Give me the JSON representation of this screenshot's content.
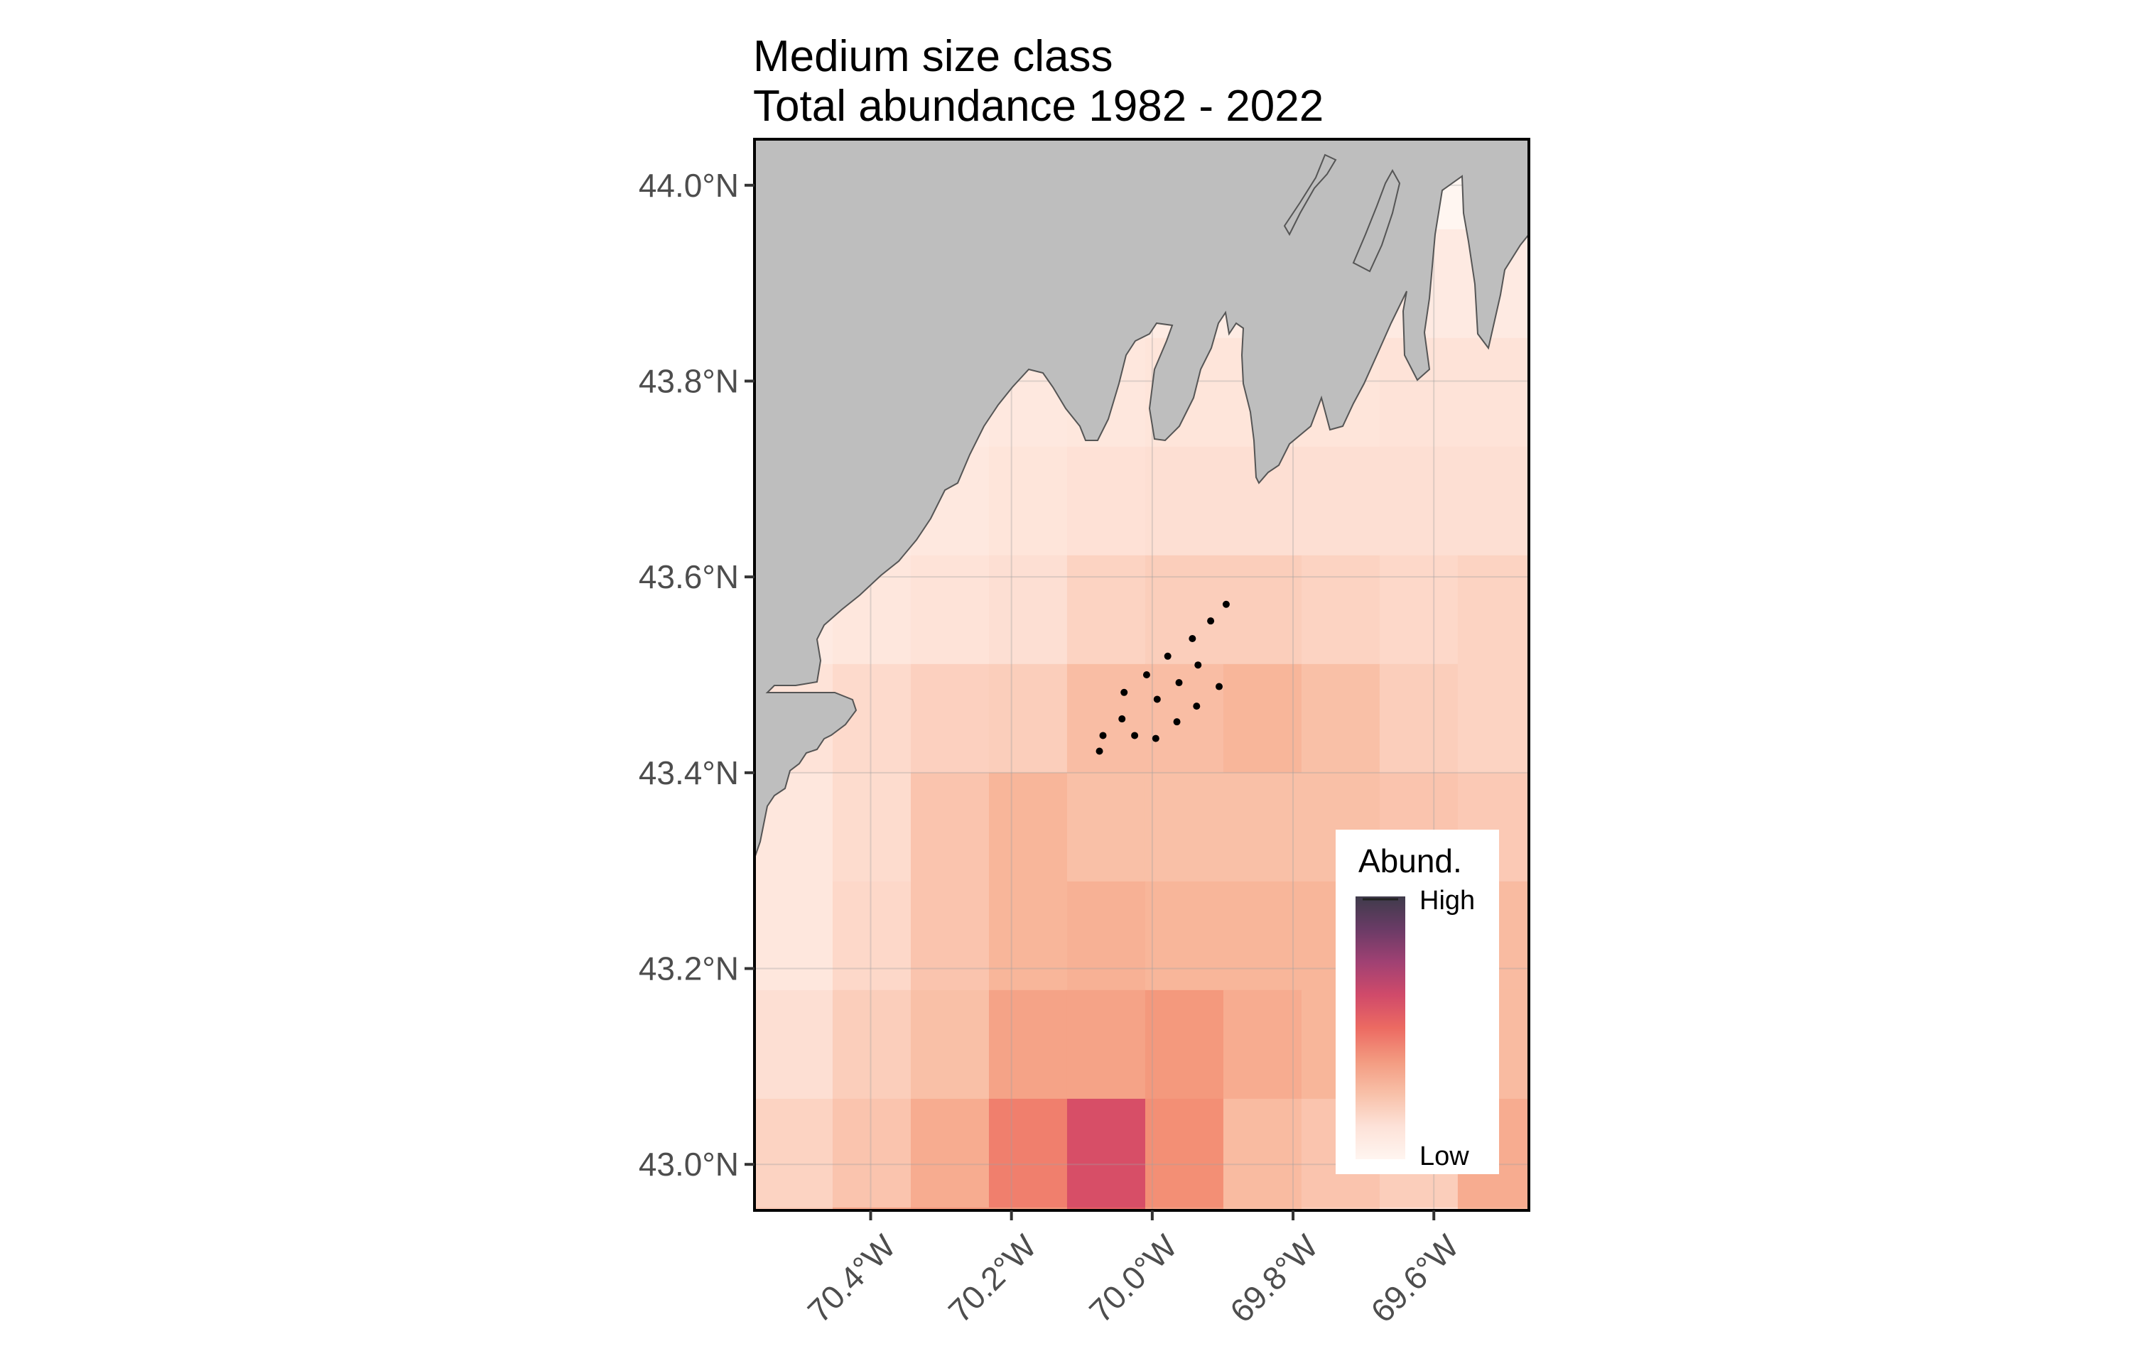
{
  "title_line1": "Medium size class",
  "title_line2": "Total abundance 1982 - 2022",
  "map": {
    "lon_range": [
      -70.565,
      -69.465
    ],
    "lat_range": [
      42.953,
      44.047
    ],
    "land_color": "#bebebe",
    "coast_color": "#555555",
    "sample_point_color": "#000000"
  },
  "axes": {
    "lat_ticks": [
      {
        "value": 44.0,
        "label": "44.0°N"
      },
      {
        "value": 43.8,
        "label": "43.8°N"
      },
      {
        "value": 43.6,
        "label": "43.6°N"
      },
      {
        "value": 43.4,
        "label": "43.4°N"
      },
      {
        "value": 43.2,
        "label": "43.2°N"
      },
      {
        "value": 43.0,
        "label": "43.0°N"
      }
    ],
    "lon_ticks": [
      {
        "value": -70.4,
        "label": "70.4°W"
      },
      {
        "value": -70.2,
        "label": "70.2°W"
      },
      {
        "value": -70.0,
        "label": "70.0°W"
      },
      {
        "value": -69.8,
        "label": "69.8°W"
      },
      {
        "value": -69.6,
        "label": "69.6°W"
      }
    ]
  },
  "legend": {
    "title": "Abund.",
    "high_label": "High",
    "low_label": "Low",
    "gradient": [
      "#3f3b4b",
      "#6a3b66",
      "#a04173",
      "#d04a6a",
      "#ec6a62",
      "#f39a80",
      "#f8c0a8",
      "#fde2d8",
      "#fff5f0"
    ],
    "placement": "bottom-right"
  },
  "chart_data": {
    "type": "heatmap",
    "grid_origin_lat": 43.955,
    "grid_origin_lon": -70.565,
    "cell_size_deg": 0.111,
    "rows": 10,
    "cols": 10,
    "abundance_index": [
      [
        0.03,
        0.03,
        0.03,
        0.04,
        0.04,
        0.05,
        0.05,
        0.05,
        0.06,
        0.06
      ],
      [
        0.04,
        0.05,
        0.06,
        0.07,
        0.08,
        0.09,
        0.09,
        0.09,
        0.1,
        0.1
      ],
      [
        0.05,
        0.06,
        0.07,
        0.09,
        0.11,
        0.12,
        0.12,
        0.12,
        0.12,
        0.12
      ],
      [
        0.06,
        0.08,
        0.1,
        0.12,
        0.18,
        0.2,
        0.2,
        0.18,
        0.16,
        0.18
      ],
      [
        0.1,
        0.15,
        0.19,
        0.2,
        0.27,
        0.27,
        0.3,
        0.26,
        0.2,
        0.18
      ],
      [
        0.08,
        0.14,
        0.24,
        0.3,
        0.26,
        0.26,
        0.26,
        0.26,
        0.24,
        0.22
      ],
      [
        0.08,
        0.16,
        0.24,
        0.3,
        0.32,
        0.3,
        0.3,
        0.3,
        0.26,
        0.28
      ],
      [
        0.12,
        0.2,
        0.26,
        0.38,
        0.38,
        0.42,
        0.34,
        0.3,
        0.24,
        0.28
      ],
      [
        0.18,
        0.24,
        0.34,
        0.52,
        0.74,
        0.46,
        0.28,
        0.24,
        0.2,
        0.34
      ],
      [
        0.22,
        0.38,
        0.42,
        0.42,
        0.66,
        0.4,
        0.26,
        0.2,
        0.12,
        0.3
      ]
    ],
    "bottom_strip_index": [
      0.34,
      0.54,
      0.52,
      0.44,
      0.56,
      0.32,
      0.16,
      0.12,
      0.14,
      0.26
    ],
    "sample_points": [
      {
        "lon": -69.895,
        "lat": 43.572
      },
      {
        "lon": -69.917,
        "lat": 43.555
      },
      {
        "lon": -69.943,
        "lat": 43.537
      },
      {
        "lon": -69.978,
        "lat": 43.519
      },
      {
        "lon": -69.935,
        "lat": 43.51
      },
      {
        "lon": -70.008,
        "lat": 43.5
      },
      {
        "lon": -69.962,
        "lat": 43.492
      },
      {
        "lon": -69.905,
        "lat": 43.488
      },
      {
        "lon": -70.04,
        "lat": 43.482
      },
      {
        "lon": -69.993,
        "lat": 43.475
      },
      {
        "lon": -69.937,
        "lat": 43.468
      },
      {
        "lon": -70.043,
        "lat": 43.455
      },
      {
        "lon": -69.965,
        "lat": 43.452
      },
      {
        "lon": -70.025,
        "lat": 43.438
      },
      {
        "lon": -69.995,
        "lat": 43.435
      },
      {
        "lon": -70.07,
        "lat": 43.438
      },
      {
        "lon": -70.075,
        "lat": 43.422
      }
    ]
  }
}
